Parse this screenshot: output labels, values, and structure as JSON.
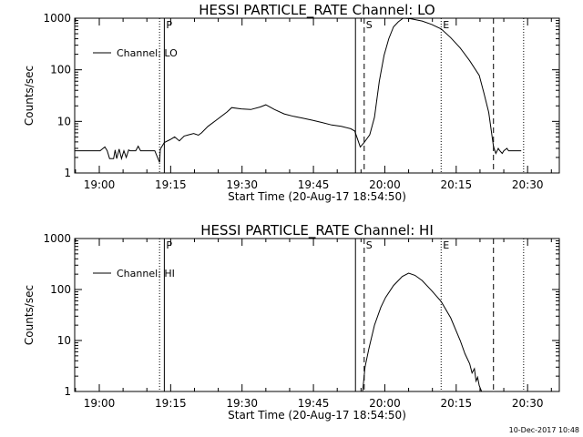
{
  "timestamp": "10-Dec-2017 10:48",
  "chart_data": [
    {
      "type": "line",
      "title": "HESSI PARTICLE_RATE Channel: LO",
      "xlabel": "Start Time (20-Aug-17 18:54:50)",
      "ylabel": "Counts/sec",
      "yscale": "log",
      "ylim": [
        1,
        1000
      ],
      "xlim": [
        "18:54:50",
        "20:36:40"
      ],
      "xticks": [
        "19:00",
        "19:15",
        "19:30",
        "19:45",
        "20:00",
        "20:15",
        "20:30"
      ],
      "yticks": [
        "1",
        "10",
        "100",
        "1000"
      ],
      "legend": {
        "label": "Channel: LO",
        "position": "top-left"
      },
      "markers": [
        {
          "label": "",
          "time": "19:12:40",
          "style": "dotted"
        },
        {
          "label": "P",
          "time": "19:13:40",
          "style": "solid"
        },
        {
          "label": "",
          "time": "19:53:50",
          "style": "solid"
        },
        {
          "label": "S",
          "time": "19:55:40",
          "style": "dashed"
        },
        {
          "label": "E",
          "time": "20:11:50",
          "style": "dotted"
        },
        {
          "label": "",
          "time": "20:22:50",
          "style": "dashed"
        },
        {
          "label": "",
          "time": "20:29:10",
          "style": "dotted"
        }
      ],
      "series": [
        {
          "name": "Channel: LO",
          "points": [
            [
              "18:54:50",
              2.7
            ],
            [
              "19:00:10",
              2.7
            ],
            [
              "19:01:10",
              3.2
            ],
            [
              "19:01:40",
              2.7
            ],
            [
              "19:02:10",
              1.9
            ],
            [
              "19:03:00",
              1.9
            ],
            [
              "19:03:20",
              2.8
            ],
            [
              "19:03:40",
              1.9
            ],
            [
              "19:04:10",
              2.9
            ],
            [
              "19:04:40",
              1.9
            ],
            [
              "19:05:10",
              2.7
            ],
            [
              "19:05:40",
              2.0
            ],
            [
              "19:06:10",
              2.8
            ],
            [
              "19:06:30",
              2.7
            ],
            [
              "19:07:40",
              2.7
            ],
            [
              "19:08:10",
              3.3
            ],
            [
              "19:08:40",
              2.7
            ],
            [
              "19:11:40",
              2.7
            ],
            [
              "19:12:40",
              1.6
            ],
            [
              "19:12:50",
              2.9
            ],
            [
              "19:13:40",
              3.9
            ],
            [
              "19:14:50",
              4.4
            ],
            [
              "19:15:50",
              5.0
            ],
            [
              "19:16:50",
              4.2
            ],
            [
              "19:17:50",
              5.2
            ],
            [
              "19:18:50",
              5.5
            ],
            [
              "19:19:50",
              5.8
            ],
            [
              "19:20:50",
              5.4
            ],
            [
              "19:21:30",
              6.0
            ],
            [
              "19:22:50",
              8.0
            ],
            [
              "19:24:50",
              11
            ],
            [
              "19:26:50",
              15.2
            ],
            [
              "19:27:50",
              18.5
            ],
            [
              "19:29:50",
              17.5
            ],
            [
              "19:31:50",
              17.0
            ],
            [
              "19:33:50",
              19.0
            ],
            [
              "19:35:00",
              21.0
            ],
            [
              "19:36:50",
              17.0
            ],
            [
              "19:38:50",
              14.0
            ],
            [
              "19:40:50",
              12.5
            ],
            [
              "19:42:50",
              11.5
            ],
            [
              "19:44:50",
              10.5
            ],
            [
              "19:46:50",
              9.5
            ],
            [
              "19:48:50",
              8.5
            ],
            [
              "19:50:50",
              8.0
            ],
            [
              "19:52:50",
              7.2
            ],
            [
              "19:53:40",
              6.5
            ],
            [
              "19:54:50",
              3.2
            ],
            [
              "19:55:40",
              3.9
            ],
            [
              "19:56:50",
              5.5
            ],
            [
              "19:57:50",
              12
            ],
            [
              "19:58:50",
              60
            ],
            [
              "19:59:50",
              190
            ],
            [
              "20:00:50",
              400
            ],
            [
              "20:01:50",
              680
            ],
            [
              "20:02:50",
              850
            ],
            [
              "20:03:50",
              1000
            ],
            [
              "20:05:20",
              980
            ],
            [
              "20:07:50",
              880
            ],
            [
              "20:09:50",
              760
            ],
            [
              "20:11:50",
              620
            ],
            [
              "20:13:50",
              420
            ],
            [
              "20:15:50",
              265
            ],
            [
              "20:17:50",
              150
            ],
            [
              "20:19:50",
              78
            ],
            [
              "20:20:50",
              35
            ],
            [
              "20:21:50",
              15
            ],
            [
              "20:22:50",
              3.3
            ],
            [
              "20:23:20",
              2.4
            ],
            [
              "20:23:50",
              3.0
            ],
            [
              "20:24:10",
              2.7
            ],
            [
              "20:24:40",
              2.4
            ],
            [
              "20:25:00",
              2.7
            ],
            [
              "20:25:40",
              3.0
            ],
            [
              "20:26:00",
              2.7
            ],
            [
              "20:28:40",
              2.7
            ]
          ]
        }
      ]
    },
    {
      "type": "line",
      "title": "HESSI PARTICLE_RATE Channel: HI",
      "xlabel": "Start Time (20-Aug-17 18:54:50)",
      "ylabel": "Counts/sec",
      "yscale": "log",
      "ylim": [
        1,
        1000
      ],
      "xlim": [
        "18:54:50",
        "20:36:40"
      ],
      "xticks": [
        "19:00",
        "19:15",
        "19:30",
        "19:45",
        "20:00",
        "20:15",
        "20:30"
      ],
      "yticks": [
        "1",
        "10",
        "100",
        "1000"
      ],
      "legend": {
        "label": "Channel: HI",
        "position": "top-left"
      },
      "markers": [
        {
          "label": "",
          "time": "18:54:50",
          "style": "dotted"
        },
        {
          "label": "",
          "time": "19:12:40",
          "style": "dotted"
        },
        {
          "label": "P",
          "time": "19:13:40",
          "style": "solid"
        },
        {
          "label": "",
          "time": "19:53:50",
          "style": "solid"
        },
        {
          "label": "S",
          "time": "19:55:40",
          "style": "dashed"
        },
        {
          "label": "E",
          "time": "20:11:50",
          "style": "dotted"
        },
        {
          "label": "",
          "time": "20:22:50",
          "style": "dashed"
        },
        {
          "label": "",
          "time": "20:29:10",
          "style": "dotted"
        }
      ],
      "series": [
        {
          "name": "Channel: HI",
          "points": [
            [
              "19:55:20",
              1.0
            ],
            [
              "19:55:50",
              3.0
            ],
            [
              "19:56:40",
              7.0
            ],
            [
              "19:57:50",
              20
            ],
            [
              "19:59:10",
              45
            ],
            [
              "20:00:10",
              70
            ],
            [
              "20:01:50",
              120
            ],
            [
              "20:03:40",
              180
            ],
            [
              "20:05:00",
              210
            ],
            [
              "20:06:20",
              190
            ],
            [
              "20:07:50",
              150
            ],
            [
              "20:09:50",
              95
            ],
            [
              "20:11:50",
              58
            ],
            [
              "20:13:50",
              28
            ],
            [
              "20:15:50",
              10
            ],
            [
              "20:16:50",
              5.5
            ],
            [
              "20:17:50",
              3.5
            ],
            [
              "20:18:20",
              2.3
            ],
            [
              "20:18:50",
              2.8
            ],
            [
              "20:19:10",
              1.6
            ],
            [
              "20:19:30",
              1.9
            ],
            [
              "20:19:50",
              1.3
            ],
            [
              "20:20:20",
              1.0
            ]
          ]
        }
      ]
    }
  ]
}
